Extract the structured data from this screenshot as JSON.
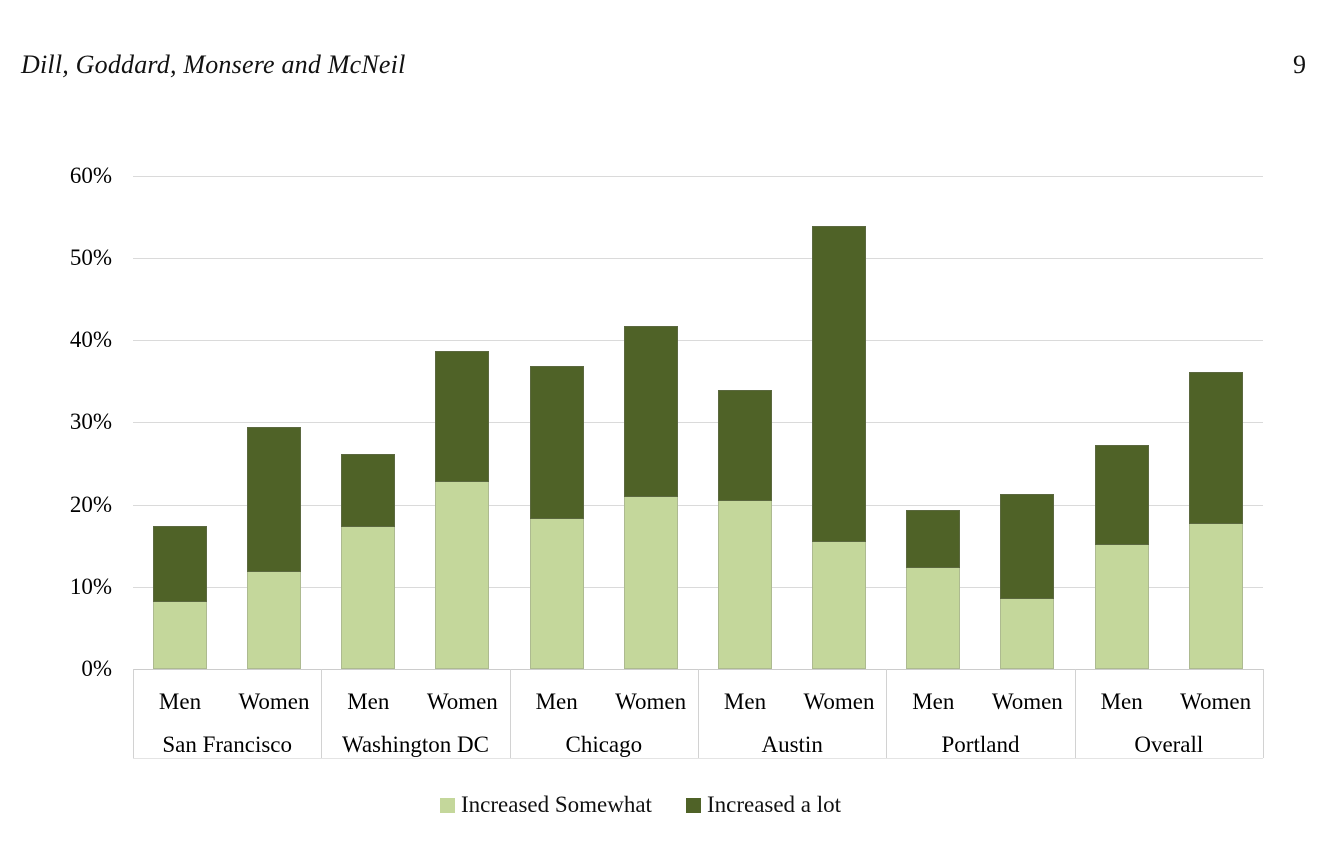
{
  "header": {
    "running_head": "Dill, Goddard, Monsere and McNeil",
    "page_number": "9"
  },
  "chart_data": {
    "type": "bar",
    "stacked": true,
    "orientation": "vertical",
    "title": "",
    "xlabel": "",
    "ylabel": "",
    "ylim": [
      0,
      60
    ],
    "ytick_step": 10,
    "ytick_labels": [
      "0%",
      "10%",
      "20%",
      "30%",
      "40%",
      "50%",
      "60%"
    ],
    "grid": true,
    "legend_position": "bottom",
    "categories": [
      "San Francisco",
      "Washington DC",
      "Chicago",
      "Austin",
      "Portland",
      "Overall"
    ],
    "subcategories": [
      "Men",
      "Women"
    ],
    "series": [
      {
        "name": "Increased Somewhat",
        "color": "#c4d79b"
      },
      {
        "name": "Increased a lot",
        "color": "#4f6227"
      }
    ],
    "groups": [
      {
        "city": "San Francisco",
        "bars": [
          {
            "label": "Men",
            "increased_somewhat": 8.1,
            "increased_a_lot": 9.3,
            "total": 17.4
          },
          {
            "label": "Women",
            "increased_somewhat": 11.8,
            "increased_a_lot": 17.6,
            "total": 29.4
          }
        ]
      },
      {
        "city": "Washington DC",
        "bars": [
          {
            "label": "Men",
            "increased_somewhat": 17.3,
            "increased_a_lot": 8.9,
            "total": 26.2
          },
          {
            "label": "Women",
            "increased_somewhat": 22.7,
            "increased_a_lot": 16.0,
            "total": 38.7
          }
        ]
      },
      {
        "city": "Chicago",
        "bars": [
          {
            "label": "Men",
            "increased_somewhat": 18.3,
            "increased_a_lot": 18.6,
            "total": 36.9
          },
          {
            "label": "Women",
            "increased_somewhat": 20.9,
            "increased_a_lot": 20.8,
            "total": 41.7
          }
        ]
      },
      {
        "city": "Austin",
        "bars": [
          {
            "label": "Men",
            "increased_somewhat": 20.4,
            "increased_a_lot": 13.6,
            "total": 34.0
          },
          {
            "label": "Women",
            "increased_somewhat": 15.4,
            "increased_a_lot": 38.5,
            "total": 53.9
          }
        ]
      },
      {
        "city": "Portland",
        "bars": [
          {
            "label": "Men",
            "increased_somewhat": 12.3,
            "increased_a_lot": 7.0,
            "total": 19.3
          },
          {
            "label": "Women",
            "increased_somewhat": 8.5,
            "increased_a_lot": 12.8,
            "total": 21.3
          }
        ]
      },
      {
        "city": "Overall",
        "bars": [
          {
            "label": "Men",
            "increased_somewhat": 15.1,
            "increased_a_lot": 12.2,
            "total": 27.3
          },
          {
            "label": "Women",
            "increased_somewhat": 17.6,
            "increased_a_lot": 18.5,
            "total": 36.1
          }
        ]
      }
    ],
    "colors": {
      "increased_somewhat": "#c4d79b",
      "increased_a_lot": "#4f6227",
      "gridline": "#dadada",
      "axis_line": "#cccccc"
    }
  }
}
